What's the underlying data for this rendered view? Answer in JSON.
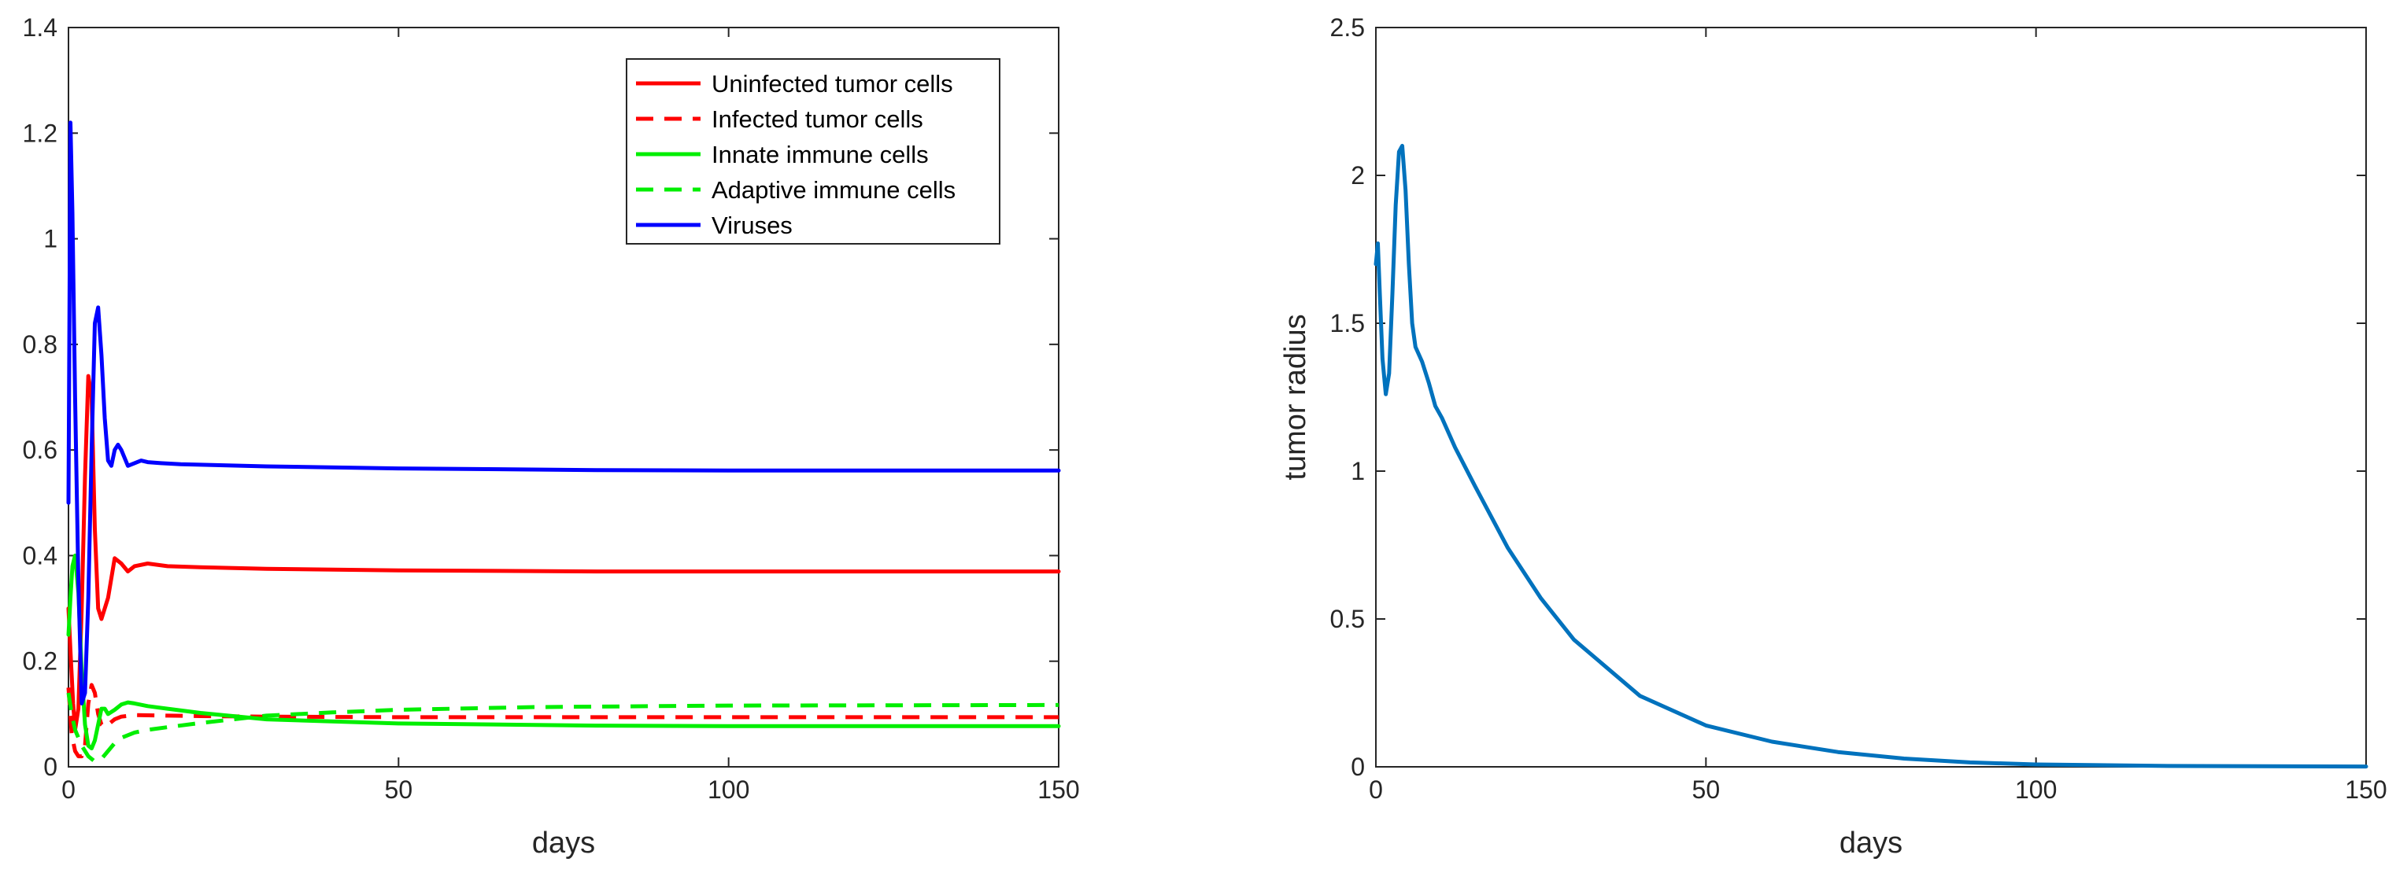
{
  "chart_data": [
    {
      "type": "line",
      "title": "",
      "xlabel": "days",
      "ylabel": "",
      "xlim": [
        0,
        150
      ],
      "ylim": [
        0,
        1.4
      ],
      "xticks": [
        0,
        50,
        100,
        150
      ],
      "yticks": [
        0,
        0.2,
        0.4,
        0.6,
        0.8,
        1,
        1.2,
        1.4
      ],
      "xtick_labels": [
        "0",
        "50",
        "100",
        "150"
      ],
      "ytick_labels": [
        "0",
        "0.2",
        "0.4",
        "0.6",
        "0.8",
        "1",
        "1.2",
        "1.4"
      ],
      "legend_position": "top-right",
      "series": [
        {
          "name": "Uninfected tumor cells",
          "color": "#ff0000",
          "dash": "solid",
          "x": [
            0,
            0.3,
            0.7,
            1,
            1.5,
            2,
            2.5,
            3,
            3.5,
            4,
            4.5,
            5,
            6,
            7,
            8,
            9,
            10,
            12,
            15,
            20,
            30,
            50,
            80,
            100,
            150
          ],
          "y": [
            0.3,
            0.22,
            0.12,
            0.07,
            0.11,
            0.3,
            0.55,
            0.74,
            0.7,
            0.45,
            0.3,
            0.28,
            0.32,
            0.395,
            0.385,
            0.37,
            0.38,
            0.385,
            0.38,
            0.378,
            0.375,
            0.372,
            0.37,
            0.37,
            0.37
          ]
        },
        {
          "name": "Infected tumor cells",
          "color": "#ff0000",
          "dash": "dashed",
          "x": [
            0,
            0.5,
            1,
            1.5,
            2,
            2.5,
            3,
            3.5,
            4,
            4.5,
            5,
            5.5,
            6,
            7,
            8,
            10,
            15,
            20,
            30,
            50,
            100,
            150
          ],
          "y": [
            0.15,
            0.06,
            0.03,
            0.02,
            0.02,
            0.04,
            0.12,
            0.155,
            0.14,
            0.1,
            0.08,
            0.075,
            0.08,
            0.09,
            0.095,
            0.098,
            0.097,
            0.096,
            0.095,
            0.094,
            0.094,
            0.094
          ]
        },
        {
          "name": "Innate immune cells",
          "color": "#00ee00",
          "dash": "solid",
          "x": [
            0,
            0.3,
            0.6,
            1,
            1.5,
            2,
            2.5,
            3,
            3.5,
            4,
            4.5,
            5,
            5.5,
            6,
            7,
            8,
            9,
            10,
            12,
            15,
            20,
            30,
            50,
            80,
            100,
            150
          ],
          "y": [
            0.25,
            0.32,
            0.38,
            0.4,
            0.33,
            0.18,
            0.08,
            0.04,
            0.035,
            0.05,
            0.08,
            0.11,
            0.11,
            0.1,
            0.108,
            0.118,
            0.122,
            0.12,
            0.115,
            0.11,
            0.102,
            0.09,
            0.082,
            0.078,
            0.077,
            0.077
          ]
        },
        {
          "name": "Adaptive immune cells",
          "color": "#00ee00",
          "dash": "dashed",
          "x": [
            0,
            0.5,
            1,
            2,
            3,
            4,
            5,
            6,
            7,
            8,
            10,
            12,
            15,
            20,
            25,
            30,
            40,
            50,
            70,
            100,
            150
          ],
          "y": [
            0.14,
            0.1,
            0.07,
            0.04,
            0.02,
            0.01,
            0.015,
            0.03,
            0.045,
            0.055,
            0.065,
            0.07,
            0.075,
            0.083,
            0.09,
            0.097,
            0.103,
            0.108,
            0.113,
            0.116,
            0.117
          ]
        },
        {
          "name": "Viruses",
          "color": "#0000ff",
          "dash": "solid",
          "x": [
            0,
            0.3,
            0.6,
            1,
            1.5,
            2,
            2.5,
            3,
            3.5,
            4,
            4.5,
            5,
            5.5,
            6,
            6.5,
            7,
            7.5,
            8,
            9,
            10,
            11,
            12,
            14,
            17,
            20,
            30,
            50,
            80,
            100,
            150
          ],
          "y": [
            0.5,
            1.22,
            1.05,
            0.7,
            0.35,
            0.12,
            0.14,
            0.32,
            0.6,
            0.84,
            0.87,
            0.78,
            0.66,
            0.58,
            0.57,
            0.6,
            0.61,
            0.6,
            0.57,
            0.575,
            0.58,
            0.577,
            0.575,
            0.573,
            0.572,
            0.569,
            0.565,
            0.562,
            0.561,
            0.561
          ]
        }
      ]
    },
    {
      "type": "line",
      "title": "",
      "xlabel": "days",
      "ylabel": "tumor radius",
      "xlim": [
        0,
        150
      ],
      "ylim": [
        0,
        2.5
      ],
      "xticks": [
        0,
        50,
        100,
        150
      ],
      "yticks": [
        0,
        0.5,
        1,
        1.5,
        2,
        2.5
      ],
      "xtick_labels": [
        "0",
        "50",
        "100",
        "150"
      ],
      "ytick_labels": [
        "0",
        "0.5",
        "1",
        "1.5",
        "2",
        "2.5"
      ],
      "series": [
        {
          "name": "tumor radius",
          "color": "#0072bd",
          "dash": "solid",
          "x": [
            0,
            0.3,
            0.6,
            1,
            1.5,
            2,
            2.5,
            3,
            3.5,
            4,
            4.5,
            5,
            5.5,
            6,
            7,
            8,
            9,
            10,
            12,
            15,
            20,
            25,
            30,
            40,
            50,
            60,
            70,
            80,
            90,
            100,
            120,
            150
          ],
          "y": [
            1.7,
            1.77,
            1.6,
            1.38,
            1.26,
            1.33,
            1.6,
            1.9,
            2.08,
            2.1,
            1.95,
            1.7,
            1.5,
            1.42,
            1.37,
            1.3,
            1.22,
            1.18,
            1.08,
            0.95,
            0.74,
            0.57,
            0.43,
            0.24,
            0.14,
            0.085,
            0.05,
            0.028,
            0.015,
            0.008,
            0.003,
            0.001
          ]
        }
      ]
    }
  ]
}
